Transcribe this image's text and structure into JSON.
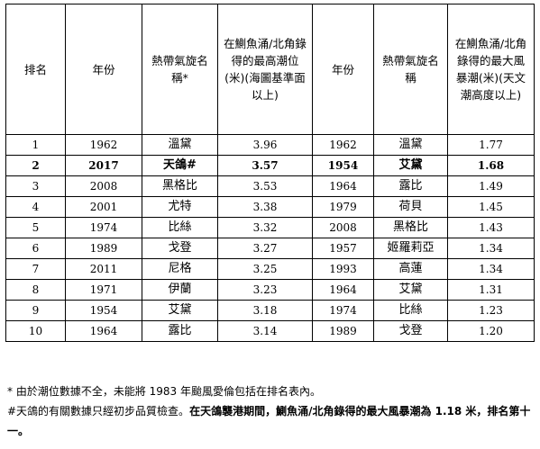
{
  "table": {
    "headers": [
      "排名",
      "年份",
      "熱帶氣旋名稱*",
      "在鰂魚涌/北角錄得的最高潮位(米)(海圖基準面以上)",
      "年份",
      "熱帶氣旋名稱",
      "在鰂魚涌/北角錄得的最大風暴潮(米)(天文潮高度以上)"
    ],
    "rows": [
      {
        "rank": "1",
        "year1": "1962",
        "name1": "溫黛",
        "tide": "3.96",
        "year2": "1962",
        "name2": "溫黛",
        "surge": "1.77"
      },
      {
        "rank": "2",
        "year1": "2017",
        "name1": "天鴿#",
        "tide": "3.57",
        "year2": "1954",
        "name2": "艾黛",
        "surge": "1.68"
      },
      {
        "rank": "3",
        "year1": "2008",
        "name1": "黑格比",
        "tide": "3.53",
        "year2": "1964",
        "name2": "露比",
        "surge": "1.49"
      },
      {
        "rank": "4",
        "year1": "2001",
        "name1": "尤特",
        "tide": "3.38",
        "year2": "1979",
        "name2": "荷貝",
        "surge": "1.45"
      },
      {
        "rank": "5",
        "year1": "1974",
        "name1": "比絲",
        "tide": "3.32",
        "year2": "2008",
        "name2": "黑格比",
        "surge": "1.43"
      },
      {
        "rank": "6",
        "year1": "1989",
        "name1": "戈登",
        "tide": "3.27",
        "year2": "1957",
        "name2": "姬羅莉亞",
        "surge": "1.34"
      },
      {
        "rank": "7",
        "year1": "2011",
        "name1": "尼格",
        "tide": "3.25",
        "year2": "1993",
        "name2": "高蓮",
        "surge": "1.34"
      },
      {
        "rank": "8",
        "year1": "1971",
        "name1": "伊蘭",
        "tide": "3.23",
        "year2": "1964",
        "name2": "艾黛",
        "surge": "1.31"
      },
      {
        "rank": "9",
        "year1": "1954",
        "name1": "艾黛",
        "tide": "3.18",
        "year2": "1974",
        "name2": "比絲",
        "surge": "1.23"
      },
      {
        "rank": "10",
        "year1": "1964",
        "name1": "露比",
        "tide": "3.14",
        "year2": "1989",
        "name2": "戈登",
        "surge": "1.20"
      }
    ]
  },
  "notes": {
    "note1": "* 由於潮位數據不全，未能將 1983 年颱風愛倫包括在排名表內。",
    "note2_plain": "#天鴿的有關數據只經初步品質檢查。",
    "note2_bold": "在天鴿襲港期間，鰂魚涌/北角錄得的最大風暴潮為 1.18 米，排名第十一。"
  }
}
